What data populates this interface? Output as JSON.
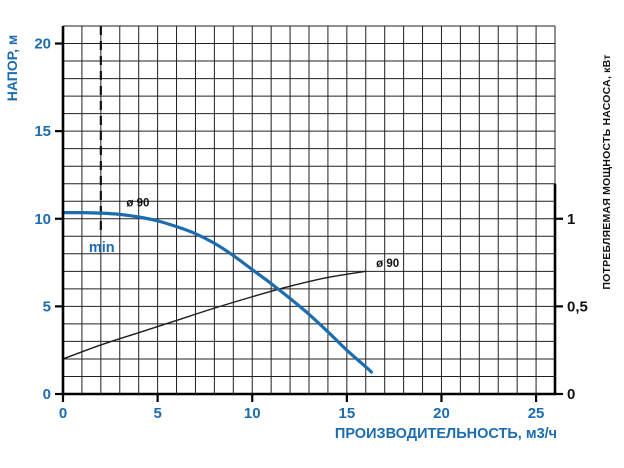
{
  "chart_data": {
    "type": "line",
    "title": "",
    "grid": "on",
    "legend": "none",
    "x_axis": {
      "label": "ПРОИЗВОДИТЕЛЬНОСТЬ, м3/ч",
      "min": 0,
      "max": 26,
      "minor_step": 1,
      "ticks": [
        "0",
        "5",
        "10",
        "15",
        "20",
        "25"
      ],
      "tick_values": [
        0,
        5,
        10,
        15,
        20,
        25
      ]
    },
    "y_axis_left": {
      "label": "НАПОР, м",
      "min": 0,
      "max": 21,
      "minor_step": 1,
      "ticks": [
        "0",
        "5",
        "10",
        "15",
        "20"
      ],
      "tick_values": [
        0,
        5,
        10,
        15,
        20
      ]
    },
    "y_axis_right": {
      "label": "ПОТРЕБЛЯЕМАЯ МОЩНОСТЬ НАСОСА, кВт",
      "min": 0,
      "axis_top": 1.2,
      "left_units_per_unit": 10,
      "ticks": [
        {
          "value": 0,
          "label": "0"
        },
        {
          "value": 0.5,
          "label": "0,5"
        },
        {
          "value": 1,
          "label": "1"
        }
      ]
    },
    "series": [
      {
        "id": "power-curve",
        "label": "ø 90",
        "axis": "right",
        "color": "#1c1c1c",
        "width": 1.4,
        "points": [
          [
            0,
            0.2
          ],
          [
            2,
            0.28
          ],
          [
            4,
            0.35
          ],
          [
            6,
            0.42
          ],
          [
            8,
            0.49
          ],
          [
            10,
            0.555
          ],
          [
            12,
            0.615
          ],
          [
            14,
            0.665
          ],
          [
            16,
            0.7
          ]
        ],
        "label_pos": [
          16.55,
          0.725
        ]
      },
      {
        "id": "head-curve",
        "label": "ø 90",
        "axis": "left",
        "color": "#1b6cb0",
        "width": 3.2,
        "points": [
          [
            0,
            10.35
          ],
          [
            1,
            10.35
          ],
          [
            2,
            10.32
          ],
          [
            3,
            10.25
          ],
          [
            4,
            10.1
          ],
          [
            5,
            9.88
          ],
          [
            6,
            9.55
          ],
          [
            7,
            9.15
          ],
          [
            8,
            8.6
          ],
          [
            9,
            7.9
          ],
          [
            10,
            7.1
          ],
          [
            11,
            6.3
          ],
          [
            12,
            5.45
          ],
          [
            13,
            4.55
          ],
          [
            14,
            3.55
          ],
          [
            15,
            2.5
          ],
          [
            16,
            1.55
          ],
          [
            16.3,
            1.25
          ]
        ],
        "label_pos": [
          3.35,
          10.7
        ]
      }
    ],
    "annotations": {
      "min_marker": {
        "x": 2,
        "line_from": 21,
        "line_to": 9,
        "label": "min",
        "label_x": 2.05,
        "label_y": 8.1
      }
    }
  },
  "colors": {
    "accent_blue": "#1b6cb0",
    "grid": "#202020",
    "axis": "#000000",
    "text_dark": "#111111",
    "background": "#ffffff"
  }
}
